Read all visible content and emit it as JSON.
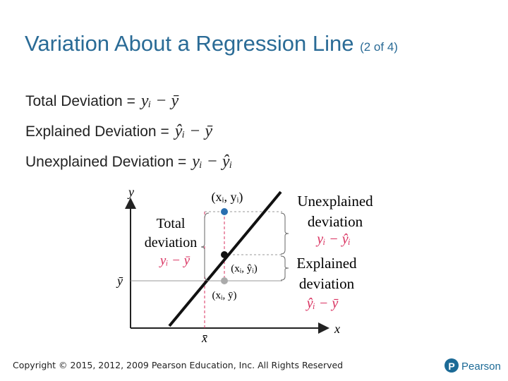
{
  "header": {
    "title": "Variation About a Regression Line",
    "part": "(2 of 4)"
  },
  "definitions": [
    {
      "label": "Total Deviation =",
      "formula": "yᵢ − ȳ"
    },
    {
      "label": "Explained Deviation =",
      "formula": "ŷᵢ − ȳ"
    },
    {
      "label": "Unexplained Deviation =",
      "formula": "yᵢ − ŷᵢ"
    }
  ],
  "diagram": {
    "y_axis": "y",
    "x_axis": "x",
    "y_mean": "ȳ",
    "x_mean": "x̄",
    "point_observed": "(xᵢ, yᵢ)",
    "point_predicted": "(xᵢ, ŷᵢ)",
    "point_mean": "(xᵢ, ȳ)",
    "total": {
      "label1": "Total",
      "label2": "deviation",
      "formula": "yᵢ − ȳ"
    },
    "unexplained": {
      "label1": "Unexplained",
      "label2": "deviation",
      "formula": "yᵢ − ŷᵢ"
    },
    "explained": {
      "label1": "Explained",
      "label2": "deviation",
      "formula": "ŷᵢ − ȳ"
    }
  },
  "footer": {
    "copyright": "Copyright © 2015, 2012, 2009 Pearson Education, Inc. All Rights Reserved",
    "brand": "Pearson"
  }
}
